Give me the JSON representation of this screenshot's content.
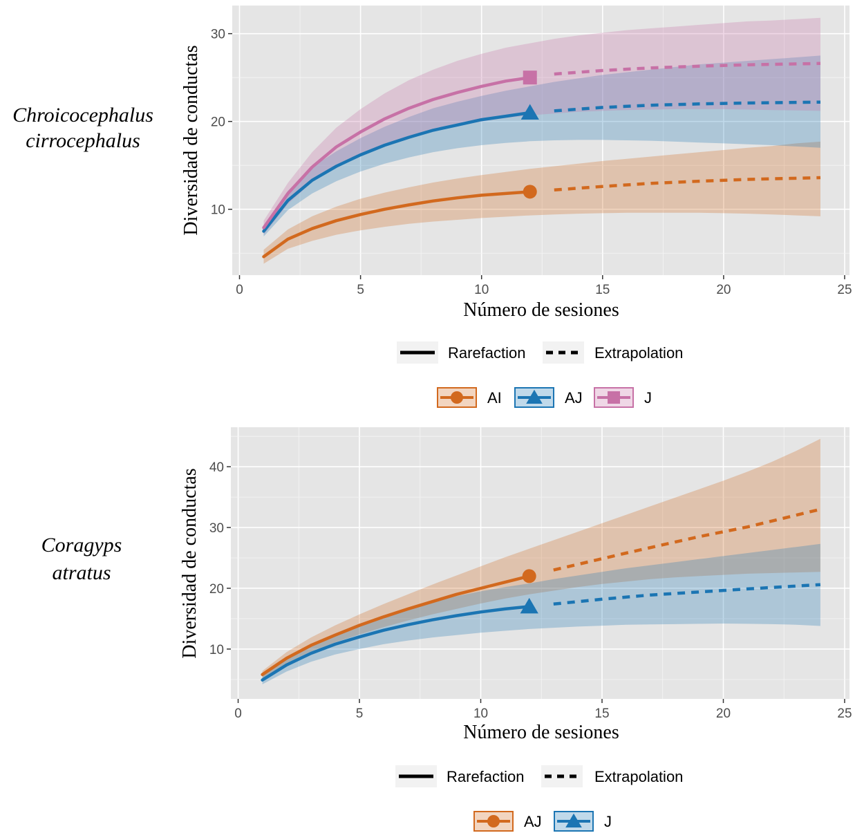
{
  "chart_data": [
    {
      "type": "line",
      "species_label": [
        "Chroicocephalus",
        "cirrocephalus"
      ],
      "xlabel": "Número de sesiones",
      "ylabel": "Diversidad de conductas",
      "xlim": [
        -0.3,
        25.2
      ],
      "ylim": [
        2.5,
        33.2
      ],
      "xticks": [
        0,
        5,
        10,
        15,
        20,
        25
      ],
      "yticks": [
        10,
        20,
        30
      ],
      "grid": true,
      "linetype_legend": [
        "Rarefaction",
        "Extrapolation"
      ],
      "series": [
        {
          "name": "AI",
          "color": "#D2691E",
          "marker": "circle",
          "rarefaction": {
            "x": [
              1,
              2,
              3,
              4,
              5,
              6,
              7,
              8,
              9,
              10,
              11,
              12
            ],
            "y": [
              4.6,
              6.6,
              7.8,
              8.7,
              9.4,
              10.0,
              10.5,
              10.95,
              11.3,
              11.6,
              11.8,
              12.0
            ]
          },
          "extrapolation": {
            "x": [
              13,
              15,
              17,
              19,
              21,
              24
            ],
            "y": [
              12.2,
              12.6,
              12.95,
              13.2,
              13.4,
              13.6
            ]
          },
          "lower": [
            3.8,
            5.5,
            6.4,
            7.1,
            7.6,
            8.0,
            8.35,
            8.6,
            8.8,
            9.0,
            9.15,
            9.3,
            9.4,
            9.5,
            9.55,
            9.6,
            9.6,
            9.6,
            9.6,
            9.55,
            9.5,
            9.4,
            9.3,
            9.2
          ],
          "upper": [
            5.4,
            7.7,
            9.2,
            10.3,
            11.2,
            11.9,
            12.5,
            13.05,
            13.5,
            13.9,
            14.25,
            14.6,
            14.9,
            15.2,
            15.5,
            15.75,
            16.0,
            16.25,
            16.5,
            16.75,
            17.0,
            17.2,
            17.5,
            17.7
          ]
        },
        {
          "name": "AJ",
          "color": "#1B75B3",
          "marker": "triangle",
          "rarefaction": {
            "x": [
              1,
              2,
              3,
              4,
              5,
              6,
              7,
              8,
              9,
              10,
              11,
              12
            ],
            "y": [
              7.5,
              11.0,
              13.3,
              14.9,
              16.2,
              17.3,
              18.2,
              19.0,
              19.6,
              20.2,
              20.6,
              21.0
            ]
          },
          "extrapolation": {
            "x": [
              13,
              15,
              17,
              19,
              21,
              24
            ],
            "y": [
              21.2,
              21.6,
              21.85,
              22.0,
              22.1,
              22.2
            ]
          },
          "lower": [
            6.9,
            9.9,
            11.8,
            13.2,
            14.3,
            15.2,
            15.9,
            16.5,
            16.95,
            17.3,
            17.55,
            17.75,
            17.85,
            17.9,
            17.9,
            17.85,
            17.8,
            17.7,
            17.6,
            17.5,
            17.4,
            17.3,
            17.15,
            17.0
          ],
          "upper": [
            8.1,
            12.1,
            14.8,
            16.6,
            18.1,
            19.4,
            20.5,
            21.5,
            22.25,
            22.9,
            23.5,
            24.0,
            24.5,
            24.9,
            25.3,
            25.6,
            25.9,
            26.2,
            26.5,
            26.7,
            26.9,
            27.1,
            27.3,
            27.5
          ]
        },
        {
          "name": "J",
          "color": "#C771A6",
          "marker": "square",
          "rarefaction": {
            "x": [
              1,
              2,
              3,
              4,
              5,
              6,
              7,
              8,
              9,
              10,
              11,
              12
            ],
            "y": [
              7.9,
              11.8,
              14.8,
              17.1,
              18.8,
              20.3,
              21.5,
              22.5,
              23.3,
              24.0,
              24.6,
              25.0
            ]
          },
          "extrapolation": {
            "x": [
              13,
              15,
              17,
              19,
              21,
              24
            ],
            "y": [
              25.4,
              25.8,
              26.1,
              26.3,
              26.45,
              26.6
            ]
          },
          "lower": [
            7.1,
            10.6,
            13.1,
            14.9,
            16.2,
            17.3,
            18.2,
            18.9,
            19.5,
            20.0,
            20.4,
            20.7,
            20.9,
            21.1,
            21.2,
            21.3,
            21.35,
            21.4,
            21.4,
            21.4,
            21.35,
            21.3,
            21.25,
            21.2
          ],
          "upper": [
            8.7,
            13.0,
            16.5,
            19.3,
            21.4,
            23.2,
            24.7,
            25.9,
            26.9,
            27.7,
            28.4,
            28.9,
            29.4,
            29.8,
            30.1,
            30.4,
            30.6,
            30.8,
            31.0,
            31.2,
            31.4,
            31.5,
            31.65,
            31.8
          ]
        }
      ]
    },
    {
      "type": "line",
      "species_label": [
        "Coragyps",
        "atratus"
      ],
      "xlabel": "Número de sesiones",
      "ylabel": "Diversidad de conductas",
      "xlim": [
        -0.3,
        25.2
      ],
      "ylim": [
        1.8,
        46.5
      ],
      "xticks": [
        0,
        5,
        10,
        15,
        20,
        25
      ],
      "yticks": [
        10,
        20,
        30,
        40
      ],
      "grid": true,
      "linetype_legend": [
        "Rarefaction",
        "Extrapolation"
      ],
      "series": [
        {
          "name": "AJ",
          "color": "#D2691E",
          "marker": "circle",
          "rarefaction": {
            "x": [
              1,
              2,
              3,
              4,
              5,
              6,
              7,
              8,
              9,
              10,
              11,
              12
            ],
            "y": [
              5.8,
              8.5,
              10.6,
              12.3,
              13.9,
              15.3,
              16.6,
              17.8,
              19.0,
              20.0,
              21.0,
              22.0
            ]
          },
          "extrapolation": {
            "x": [
              13,
              16,
              19,
              21,
              24
            ],
            "y": [
              23.0,
              25.8,
              28.5,
              30.1,
              33.0
            ]
          },
          "lower": [
            5.2,
            7.7,
            9.6,
            11.1,
            12.4,
            13.6,
            14.7,
            15.7,
            16.6,
            17.5,
            18.3,
            19.0,
            19.6,
            20.2,
            20.7,
            21.1,
            21.5,
            21.8,
            22.0,
            22.2,
            22.4,
            22.5,
            22.6,
            22.7
          ],
          "upper": [
            6.4,
            9.5,
            11.9,
            13.9,
            15.7,
            17.4,
            19.0,
            20.6,
            22.1,
            23.6,
            25.1,
            26.5,
            27.9,
            29.3,
            30.7,
            32.1,
            33.5,
            34.9,
            36.3,
            37.7,
            39.2,
            40.8,
            42.6,
            44.6
          ]
        },
        {
          "name": "J",
          "color": "#1B75B3",
          "marker": "triangle",
          "rarefaction": {
            "x": [
              1,
              2,
              3,
              4,
              5,
              6,
              7,
              8,
              9,
              10,
              11,
              12
            ],
            "y": [
              4.9,
              7.4,
              9.3,
              10.8,
              12.0,
              13.1,
              14.0,
              14.8,
              15.5,
              16.1,
              16.6,
              17.0
            ]
          },
          "extrapolation": {
            "x": [
              13,
              15,
              17,
              19,
              21,
              24
            ],
            "y": [
              17.4,
              18.2,
              18.9,
              19.4,
              19.9,
              20.6
            ]
          },
          "lower": [
            4.2,
            6.3,
            7.9,
            9.1,
            10.0,
            10.8,
            11.4,
            11.9,
            12.3,
            12.7,
            13.0,
            13.3,
            13.5,
            13.7,
            13.85,
            14.0,
            14.05,
            14.1,
            14.15,
            14.2,
            14.15,
            14.1,
            14.0,
            13.8
          ],
          "upper": [
            5.6,
            8.5,
            10.7,
            12.5,
            14.0,
            15.4,
            16.6,
            17.7,
            18.7,
            19.5,
            20.2,
            20.8,
            21.5,
            22.1,
            22.7,
            23.3,
            23.8,
            24.3,
            24.8,
            25.3,
            25.8,
            26.3,
            26.8,
            27.3
          ]
        }
      ]
    }
  ]
}
